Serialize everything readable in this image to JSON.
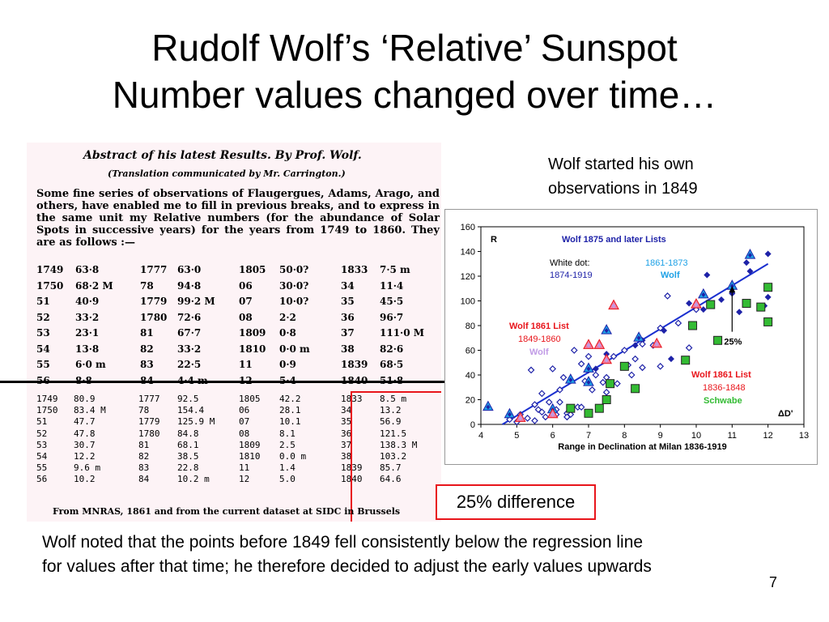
{
  "slide": {
    "title_line1": "Rudolf Wolf’s ‘Relative’ Sunspot",
    "title_line2": "Number values changed over time…",
    "note_line1": "Wolf started his own",
    "note_line2": "observations in 1849",
    "difference_label": "25% difference",
    "caption_line1": "Wolf noted that the points before 1849 fell consistently below the regression line",
    "caption_line2": "for values after that time; he therefore decided to adjust the early values upwards",
    "page_number": "7"
  },
  "scan": {
    "header": "Abstract of his latest Results.   By Prof. Wolf.",
    "subheader": "(Translation communicated by Mr. Carrington.)",
    "paragraph": "Some fine series of observations of Flaugergues, Adams, Arago, and others, have enabled me to fill in previous breaks, and to express in the same unit my Relative numbers (for the abundance of Solar Spots in successive years) for the years from 1749 to 1860.  They are as follows :—",
    "footer": "From MNRAS, 1861 and from the current dataset at SIDC in Brussels",
    "original_rows": [
      [
        "1749",
        "63·8",
        "1777",
        "63·0",
        "1805",
        "50·0?",
        "1833",
        "7·5 m"
      ],
      [
        "1750",
        "68·2 M",
        "78",
        "94·8",
        "06",
        "30·0?",
        "34",
        "11·4"
      ],
      [
        "51",
        "40·9",
        "1779",
        "99·2 M",
        "07",
        "10·0?",
        "35",
        "45·5"
      ],
      [
        "52",
        "33·2",
        "1780",
        "72·6",
        "08",
        "2·2",
        "36",
        "96·7"
      ],
      [
        "53",
        "23·1",
        "81",
        "67·7",
        "1809",
        "0·8",
        "37",
        "111·0 M"
      ],
      [
        "54",
        "13·8",
        "82",
        "33·2",
        "1810",
        "0·0 m",
        "38",
        "82·6"
      ],
      [
        "55",
        "6·0 m",
        "83",
        "22·5",
        "11",
        "0·9",
        "1839",
        "68·5"
      ],
      [
        "56",
        "8·8",
        "84",
        "4·4 m",
        "12",
        "5·4",
        "1840",
        "51·8"
      ]
    ],
    "current_rows": [
      [
        "1749",
        "80.9",
        "1777",
        "92.5",
        "1805",
        "42.2",
        "1833",
        "8.5 m"
      ],
      [
        "1750",
        "83.4 M",
        "78",
        "154.4",
        "06",
        "28.1",
        "34",
        "13.2"
      ],
      [
        "51",
        "47.7",
        "1779",
        "125.9 M",
        "07",
        "10.1",
        "35",
        "56.9"
      ],
      [
        "52",
        "47.8",
        "1780",
        "84.8",
        "08",
        "8.1",
        "36",
        "121.5"
      ],
      [
        "53",
        "30.7",
        "81",
        "68.1",
        "1809",
        "2.5",
        "37",
        "138.3 M"
      ],
      [
        "54",
        "12.2",
        "82",
        "38.5",
        "1810",
        "0.0 m",
        "38",
        "103.2"
      ],
      [
        "55",
        "9.6 m",
        "83",
        "22.8",
        "11",
        "1.4",
        "1839",
        "85.7"
      ],
      [
        "56",
        "10.2",
        "84",
        "10.2 m",
        "12",
        "5.0",
        "1840",
        "64.6"
      ]
    ]
  },
  "chart_data": {
    "type": "scatter",
    "xlabel": "Range in Declination at Milan 1836-1919",
    "ylabel": "R",
    "xlim": [
      4,
      13
    ],
    "ylim": [
      0,
      160
    ],
    "xticks": [
      "4",
      "5",
      "6",
      "7",
      "8",
      "9",
      "10",
      "11",
      "12",
      "13"
    ],
    "yticks": [
      "0",
      "20",
      "40",
      "60",
      "80",
      "100",
      "120",
      "140",
      "160"
    ],
    "annotations": {
      "later_title": "Wolf 1875 and later Lists",
      "white_dot_label": "White dot:",
      "white_dot_years": "1874-1919",
      "range_1861_1873": "1861-1873",
      "wolf_label": "Wolf",
      "wolf1861_a_title": "Wolf 1861 List",
      "wolf1861_a_years": "1849-1860",
      "wolf1861_a_who": "Wolf",
      "wolf1861_b_title": "Wolf 1861 List",
      "wolf1861_b_years": "1836-1848",
      "wolf1861_b_who": "Schwabe",
      "pct": "25%",
      "delta_d": "ΔD'"
    },
    "colors": {
      "blue": "#1e22a8",
      "light_blue": "#1ea1e6",
      "red": "#e8151b",
      "pink": "#f07ba0",
      "green": "#33bb33",
      "lavender": "#c19be6",
      "regression": "#1a2fcf"
    },
    "regression_line": {
      "x": [
        4.6,
        12
      ],
      "y": [
        0,
        130
      ]
    },
    "arrow": {
      "x": 11,
      "y_from": 75,
      "y_to": 112
    },
    "series": [
      {
        "marker": "diamond-filled",
        "x": [
          10.3,
          10.0,
          10.7,
          11.0,
          11.4,
          12.0,
          12.0,
          11.0,
          7.5,
          7.2,
          9.3,
          8.3,
          8.5,
          9.1,
          10.2,
          11.5,
          9.8,
          11.2,
          11.9
        ],
        "y": [
          121,
          95,
          101,
          110,
          131,
          138,
          103,
          106,
          57,
          45,
          53,
          64,
          68,
          76,
          93,
          124,
          98,
          91,
          96
        ]
      },
      {
        "marker": "diamond-open",
        "x": [
          4.8,
          5.0,
          5.1,
          5.3,
          5.5,
          5.6,
          5.7,
          5.8,
          5.9,
          6.0,
          6.1,
          6.2,
          6.3,
          6.4,
          6.5,
          6.6,
          6.7,
          6.8,
          6.9,
          7.0,
          7.1,
          7.2,
          7.4,
          7.5,
          7.7,
          7.8,
          8.0,
          8.1,
          8.3,
          8.5,
          8.8,
          9.0,
          9.2,
          9.5,
          10.0,
          5.4,
          5.7,
          6.2,
          6.8,
          7.5,
          8.5,
          9.0,
          9.8,
          6.1,
          7.0,
          8.2,
          6.4,
          5.5
        ],
        "y": [
          4,
          2,
          8,
          5,
          3,
          12,
          25,
          6,
          18,
          45,
          12,
          28,
          38,
          9,
          8,
          60,
          14,
          49,
          35,
          55,
          28,
          40,
          34,
          38,
          55,
          33,
          60,
          48,
          53,
          65,
          64,
          78,
          104,
          82,
          93,
          44,
          10,
          18,
          14,
          26,
          46,
          47,
          62,
          8,
          44,
          40,
          6,
          16
        ]
      },
      {
        "marker": "triangle-blue",
        "x": [
          4.2,
          6.0,
          6.5,
          7.0,
          7.5,
          10.2,
          11.0,
          11.5,
          7.0,
          4.8,
          8.4
        ],
        "y": [
          14,
          12,
          36,
          45,
          76,
          105,
          112,
          137,
          34,
          8,
          70
        ]
      },
      {
        "marker": "triangle-pink",
        "x": [
          5.1,
          6.0,
          7.0,
          7.5,
          7.7,
          10.0,
          8.9,
          7.3
        ],
        "y": [
          5,
          8,
          64,
          52,
          96,
          97,
          65,
          64
        ]
      },
      {
        "marker": "square-green",
        "x": [
          6.5,
          7.0,
          7.5,
          7.6,
          8.0,
          8.3,
          9.7,
          9.9,
          10.4,
          10.6,
          11.4,
          11.8,
          12.0,
          12.0,
          7.3
        ],
        "y": [
          13,
          9,
          20,
          33,
          47,
          29,
          52,
          80,
          97,
          68,
          98,
          95,
          111,
          83,
          13
        ]
      }
    ]
  }
}
